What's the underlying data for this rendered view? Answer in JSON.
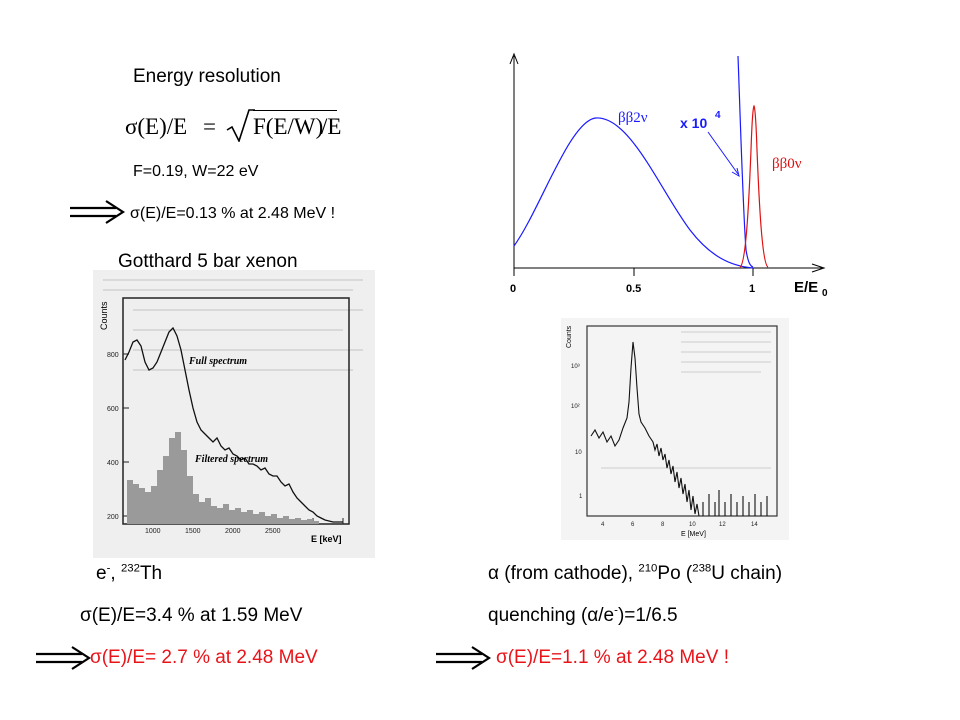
{
  "top_left": {
    "heading": "Energy resolution",
    "formula": {
      "lhs": "σ(E)/E",
      "eq": "=",
      "radicand": "F(E/W)",
      "tail": "/E"
    },
    "params": "F=0.19,  W=22 eV",
    "result": "σ(E)/E=0.13 % at  2.48 MeV !"
  },
  "spectrum_plot": {
    "title": "Gotthard 5 bar xenon",
    "ylabel": "Counts",
    "xlabel": "E [keV]",
    "legend_full": "Full spectrum",
    "legend_filtered": "Filtered spectrum",
    "yticks": [
      "800",
      "600",
      "400",
      "200",
      "0"
    ],
    "xticks": [
      "1000",
      "1500",
      "2000",
      "2500",
      "3000",
      "3500"
    ]
  },
  "caption_left": {
    "line1_a": "e",
    "line1_sup": "-",
    "line1_b": ", ",
    "line1_sup2": "232",
    "line1_c": "Th",
    "line2": "σ(E)/E=3.4  % at  1.59 MeV",
    "line3": "σ(E)/E= 2.7 % at  2.48 MeV"
  },
  "beta_plot": {
    "label_2nu": "ββ2ν",
    "label_0nu": "ββ0ν",
    "scale_label": "x 10",
    "scale_exp": "4",
    "x_axis_label": "E/E",
    "x_axis_sub": "0",
    "xticks": [
      "0",
      "0.5",
      "1"
    ]
  },
  "alpha_plot": {
    "ylabel": "Counts",
    "xlabel": "E [MeV]",
    "yticks": [
      "10³",
      "10²",
      "10",
      "1"
    ],
    "xticks": [
      "4",
      "6",
      "8",
      "10",
      "12",
      "14"
    ]
  },
  "caption_right": {
    "line1_a": "α (from cathode), ",
    "line1_sup": "210",
    "line1_b": "Po (",
    "line1_sup2": "238",
    "line1_c": "U chain)",
    "line2_a": "quenching  (α/e",
    "line2_sup": "-",
    "line2_b": ")=1/6.5",
    "line3": "σ(E)/E=1.1 % at 2.48 MeV !"
  },
  "colors": {
    "accent_red": "#e8141a",
    "blue_curve": "#1a1aff",
    "red_curve": "#e01010"
  }
}
